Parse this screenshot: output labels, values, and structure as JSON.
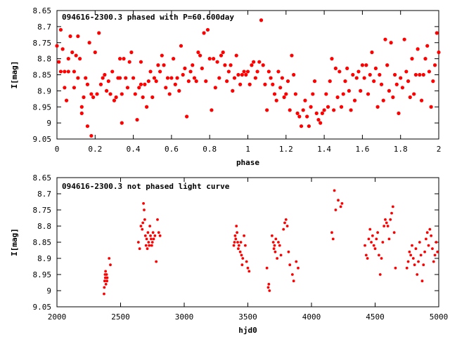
{
  "chart_data": [
    {
      "type": "scatter",
      "title": "094616-2300.3 phased with P=60.600day",
      "xlabel": "phase",
      "ylabel": "I[mag]",
      "xlim": [
        0,
        2
      ],
      "ylim": [
        8.65,
        9.05
      ],
      "y_inverted": true,
      "xticks": [
        "0",
        "0.2",
        "0.4",
        "0.6",
        "0.8",
        "1",
        "1.2",
        "1.4",
        "1.6",
        "1.8",
        "2"
      ],
      "yticks": [
        "8.65",
        "8.7",
        "8.75",
        "8.8",
        "8.85",
        "8.9",
        "8.95",
        "9",
        "9.05"
      ],
      "marker_color": "#ff0000",
      "points": [
        [
          0.0,
          8.76
        ],
        [
          0.01,
          8.81
        ],
        [
          0.02,
          8.84
        ],
        [
          0.02,
          8.71
        ],
        [
          0.03,
          8.77
        ],
        [
          0.04,
          8.84
        ],
        [
          0.04,
          8.89
        ],
        [
          0.05,
          8.93
        ],
        [
          0.06,
          8.84
        ],
        [
          0.06,
          8.8
        ],
        [
          0.07,
          8.73
        ],
        [
          0.08,
          8.78
        ],
        [
          0.09,
          8.89
        ],
        [
          0.09,
          8.84
        ],
        [
          0.1,
          8.79
        ],
        [
          0.11,
          8.86
        ],
        [
          0.11,
          8.73
        ],
        [
          0.12,
          8.8
        ],
        [
          0.13,
          8.95
        ],
        [
          0.13,
          8.97
        ],
        [
          0.14,
          8.92
        ],
        [
          0.15,
          8.86
        ],
        [
          0.16,
          8.88
        ],
        [
          0.16,
          9.01
        ],
        [
          0.17,
          8.75
        ],
        [
          0.18,
          9.04
        ],
        [
          0.18,
          8.91
        ],
        [
          0.19,
          8.92
        ],
        [
          0.2,
          8.78
        ],
        [
          0.21,
          8.91
        ],
        [
          0.22,
          8.72
        ],
        [
          0.23,
          8.88
        ],
        [
          0.24,
          8.86
        ],
        [
          0.25,
          8.85
        ],
        [
          0.26,
          8.9
        ],
        [
          0.27,
          8.87
        ],
        [
          0.28,
          8.91
        ],
        [
          0.29,
          8.84
        ],
        [
          0.3,
          8.93
        ],
        [
          0.31,
          8.92
        ],
        [
          0.32,
          8.86
        ],
        [
          0.33,
          8.8
        ],
        [
          0.33,
          8.86
        ],
        [
          0.34,
          8.91
        ],
        [
          0.34,
          9.0
        ],
        [
          0.35,
          8.8
        ],
        [
          0.36,
          8.86
        ],
        [
          0.37,
          8.89
        ],
        [
          0.38,
          8.81
        ],
        [
          0.39,
          8.78
        ],
        [
          0.4,
          8.86
        ],
        [
          0.41,
          8.91
        ],
        [
          0.42,
          8.99
        ],
        [
          0.43,
          8.89
        ],
        [
          0.44,
          8.88
        ],
        [
          0.44,
          8.81
        ],
        [
          0.45,
          8.92
        ],
        [
          0.46,
          8.88
        ],
        [
          0.47,
          8.95
        ],
        [
          0.48,
          8.87
        ],
        [
          0.49,
          8.84
        ],
        [
          0.5,
          8.92
        ],
        [
          0.51,
          8.86
        ],
        [
          0.52,
          8.87
        ],
        [
          0.53,
          8.82
        ],
        [
          0.54,
          8.84
        ],
        [
          0.55,
          8.79
        ],
        [
          0.56,
          8.82
        ],
        [
          0.57,
          8.89
        ],
        [
          0.58,
          8.86
        ],
        [
          0.59,
          8.91
        ],
        [
          0.6,
          8.86
        ],
        [
          0.61,
          8.8
        ],
        [
          0.62,
          8.88
        ],
        [
          0.63,
          8.86
        ],
        [
          0.64,
          8.9
        ],
        [
          0.65,
          8.76
        ],
        [
          0.66,
          8.85
        ],
        [
          0.67,
          8.83
        ],
        [
          0.68,
          8.98
        ],
        [
          0.69,
          8.87
        ],
        [
          0.7,
          8.84
        ],
        [
          0.71,
          8.82
        ],
        [
          0.72,
          8.86
        ],
        [
          0.73,
          8.87
        ],
        [
          0.74,
          8.78
        ],
        [
          0.75,
          8.79
        ],
        [
          0.76,
          8.83
        ],
        [
          0.77,
          8.72
        ],
        [
          0.78,
          8.87
        ],
        [
          0.79,
          8.71
        ],
        [
          0.8,
          8.8
        ],
        [
          0.81,
          8.96
        ],
        [
          0.82,
          8.8
        ],
        [
          0.83,
          8.89
        ],
        [
          0.84,
          8.81
        ],
        [
          0.85,
          8.86
        ],
        [
          0.86,
          8.79
        ],
        [
          0.87,
          8.78
        ],
        [
          0.88,
          8.82
        ],
        [
          0.89,
          8.87
        ],
        [
          0.9,
          8.84
        ],
        [
          0.91,
          8.82
        ],
        [
          0.92,
          8.9
        ],
        [
          0.93,
          8.86
        ],
        [
          0.94,
          8.79
        ],
        [
          0.95,
          8.85
        ],
        [
          0.96,
          8.88
        ],
        [
          0.97,
          8.85
        ],
        [
          0.98,
          8.84
        ],
        [
          0.99,
          8.85
        ],
        [
          1.0,
          8.84
        ],
        [
          1.01,
          8.88
        ],
        [
          1.02,
          8.82
        ],
        [
          1.03,
          8.81
        ],
        [
          1.04,
          8.86
        ],
        [
          1.05,
          8.84
        ],
        [
          1.06,
          8.81
        ],
        [
          1.07,
          8.68
        ],
        [
          1.08,
          8.82
        ],
        [
          1.09,
          8.88
        ],
        [
          1.1,
          8.96
        ],
        [
          1.11,
          8.84
        ],
        [
          1.12,
          8.86
        ],
        [
          1.13,
          8.88
        ],
        [
          1.14,
          8.91
        ],
        [
          1.15,
          8.93
        ],
        [
          1.16,
          8.84
        ],
        [
          1.17,
          8.89
        ],
        [
          1.18,
          8.86
        ],
        [
          1.19,
          8.92
        ],
        [
          1.2,
          8.91
        ],
        [
          1.21,
          8.87
        ],
        [
          1.22,
          8.96
        ],
        [
          1.23,
          8.79
        ],
        [
          1.24,
          8.85
        ],
        [
          1.25,
          8.91
        ],
        [
          1.26,
          8.97
        ],
        [
          1.27,
          8.98
        ],
        [
          1.28,
          9.01
        ],
        [
          1.29,
          8.96
        ],
        [
          1.3,
          8.93
        ],
        [
          1.31,
          8.98
        ],
        [
          1.32,
          9.01
        ],
        [
          1.33,
          8.95
        ],
        [
          1.34,
          8.91
        ],
        [
          1.35,
          8.87
        ],
        [
          1.36,
          8.97
        ],
        [
          1.37,
          8.99
        ],
        [
          1.38,
          9.0
        ],
        [
          1.39,
          8.97
        ],
        [
          1.4,
          8.96
        ],
        [
          1.41,
          8.91
        ],
        [
          1.42,
          8.95
        ],
        [
          1.43,
          8.87
        ],
        [
          1.44,
          8.8
        ],
        [
          1.45,
          8.96
        ],
        [
          1.46,
          8.83
        ],
        [
          1.47,
          8.92
        ],
        [
          1.48,
          8.84
        ],
        [
          1.49,
          8.95
        ],
        [
          1.5,
          8.91
        ],
        [
          1.51,
          8.87
        ],
        [
          1.52,
          8.83
        ],
        [
          1.53,
          8.9
        ],
        [
          1.54,
          8.96
        ],
        [
          1.55,
          8.85
        ],
        [
          1.56,
          8.93
        ],
        [
          1.57,
          8.86
        ],
        [
          1.58,
          8.84
        ],
        [
          1.59,
          8.9
        ],
        [
          1.6,
          8.82
        ],
        [
          1.61,
          8.86
        ],
        [
          1.62,
          8.82
        ],
        [
          1.63,
          8.91
        ],
        [
          1.64,
          8.85
        ],
        [
          1.65,
          8.78
        ],
        [
          1.66,
          8.87
        ],
        [
          1.67,
          8.83
        ],
        [
          1.68,
          8.95
        ],
        [
          1.69,
          8.85
        ],
        [
          1.7,
          8.88
        ],
        [
          1.71,
          8.93
        ],
        [
          1.72,
          8.74
        ],
        [
          1.73,
          8.82
        ],
        [
          1.74,
          8.9
        ],
        [
          1.75,
          8.75
        ],
        [
          1.76,
          8.92
        ],
        [
          1.77,
          8.85
        ],
        [
          1.78,
          8.88
        ],
        [
          1.79,
          8.97
        ],
        [
          1.8,
          8.86
        ],
        [
          1.81,
          8.89
        ],
        [
          1.82,
          8.74
        ],
        [
          1.83,
          8.84
        ],
        [
          1.84,
          8.87
        ],
        [
          1.85,
          8.92
        ],
        [
          1.86,
          8.8
        ],
        [
          1.87,
          8.91
        ],
        [
          1.88,
          8.85
        ],
        [
          1.89,
          8.77
        ],
        [
          1.9,
          8.85
        ],
        [
          1.91,
          8.93
        ],
        [
          1.92,
          8.85
        ],
        [
          1.93,
          8.8
        ],
        [
          1.94,
          8.76
        ],
        [
          1.95,
          8.84
        ],
        [
          1.96,
          8.95
        ],
        [
          1.97,
          8.87
        ],
        [
          1.98,
          8.82
        ],
        [
          1.99,
          8.72
        ],
        [
          2.0,
          8.78
        ]
      ]
    },
    {
      "type": "scatter",
      "title": "094616-2300.3 not phased light curve",
      "xlabel": "hjd0",
      "ylabel": "I[mag]",
      "xlim": [
        2000,
        5000
      ],
      "ylim": [
        8.65,
        9.05
      ],
      "y_inverted": true,
      "xticks": [
        "2000",
        "2500",
        "3000",
        "3500",
        "4000",
        "4500",
        "5000"
      ],
      "yticks": [
        "8.65",
        "8.7",
        "8.75",
        "8.8",
        "8.85",
        "8.9",
        "8.95",
        "9",
        "9.05"
      ],
      "marker_color": "#ff0000",
      "points": [
        [
          2370,
          9.01
        ],
        [
          2372,
          8.99
        ],
        [
          2375,
          8.97
        ],
        [
          2378,
          8.95
        ],
        [
          2380,
          8.96
        ],
        [
          2382,
          8.94
        ],
        [
          2385,
          8.98
        ],
        [
          2388,
          8.96
        ],
        [
          2390,
          8.95
        ],
        [
          2393,
          8.97
        ],
        [
          2395,
          8.96
        ],
        [
          2410,
          8.9
        ],
        [
          2420,
          8.92
        ],
        [
          2640,
          8.85
        ],
        [
          2650,
          8.87
        ],
        [
          2660,
          8.8
        ],
        [
          2670,
          8.81
        ],
        [
          2675,
          8.79
        ],
        [
          2680,
          8.73
        ],
        [
          2685,
          8.75
        ],
        [
          2690,
          8.78
        ],
        [
          2695,
          8.83
        ],
        [
          2700,
          8.86
        ],
        [
          2705,
          8.84
        ],
        [
          2710,
          8.87
        ],
        [
          2715,
          8.82
        ],
        [
          2720,
          8.85
        ],
        [
          2725,
          8.86
        ],
        [
          2730,
          8.8
        ],
        [
          2735,
          8.83
        ],
        [
          2740,
          8.84
        ],
        [
          2745,
          8.86
        ],
        [
          2750,
          8.85
        ],
        [
          2755,
          8.82
        ],
        [
          2760,
          8.84
        ],
        [
          2770,
          8.83
        ],
        [
          2780,
          8.91
        ],
        [
          2790,
          8.78
        ],
        [
          2800,
          8.82
        ],
        [
          2810,
          8.83
        ],
        [
          3390,
          8.86
        ],
        [
          3395,
          8.85
        ],
        [
          3400,
          8.83
        ],
        [
          3405,
          8.84
        ],
        [
          3410,
          8.8
        ],
        [
          3415,
          8.82
        ],
        [
          3420,
          8.85
        ],
        [
          3425,
          8.87
        ],
        [
          3430,
          8.86
        ],
        [
          3440,
          8.88
        ],
        [
          3445,
          8.85
        ],
        [
          3450,
          8.89
        ],
        [
          3455,
          8.92
        ],
        [
          3460,
          8.9
        ],
        [
          3470,
          8.83
        ],
        [
          3480,
          8.86
        ],
        [
          3490,
          8.91
        ],
        [
          3500,
          8.93
        ],
        [
          3510,
          8.94
        ],
        [
          3650,
          8.93
        ],
        [
          3660,
          8.99
        ],
        [
          3665,
          8.98
        ],
        [
          3670,
          9.0
        ],
        [
          3690,
          8.83
        ],
        [
          3700,
          8.85
        ],
        [
          3705,
          8.87
        ],
        [
          3710,
          8.86
        ],
        [
          3715,
          8.88
        ],
        [
          3720,
          8.84
        ],
        [
          3730,
          8.9
        ],
        [
          3740,
          8.85
        ],
        [
          3750,
          8.86
        ],
        [
          3760,
          8.89
        ],
        [
          3780,
          8.81
        ],
        [
          3790,
          8.79
        ],
        [
          3800,
          8.78
        ],
        [
          3810,
          8.8
        ],
        [
          3820,
          8.88
        ],
        [
          3830,
          8.92
        ],
        [
          3850,
          8.95
        ],
        [
          3860,
          8.97
        ],
        [
          3880,
          8.91
        ],
        [
          3895,
          8.93
        ],
        [
          4160,
          8.82
        ],
        [
          4170,
          8.84
        ],
        [
          4180,
          8.69
        ],
        [
          4190,
          8.75
        ],
        [
          4210,
          8.72
        ],
        [
          4230,
          8.74
        ],
        [
          4240,
          8.73
        ],
        [
          4420,
          8.86
        ],
        [
          4430,
          8.89
        ],
        [
          4440,
          8.9
        ],
        [
          4450,
          8.84
        ],
        [
          4460,
          8.81
        ],
        [
          4470,
          8.85
        ],
        [
          4480,
          8.83
        ],
        [
          4490,
          8.86
        ],
        [
          4500,
          8.87
        ],
        [
          4510,
          8.84
        ],
        [
          4520,
          8.82
        ],
        [
          4530,
          8.89
        ],
        [
          4540,
          8.95
        ],
        [
          4550,
          8.9
        ],
        [
          4560,
          8.85
        ],
        [
          4570,
          8.8
        ],
        [
          4580,
          8.78
        ],
        [
          4590,
          8.79
        ],
        [
          4600,
          8.8
        ],
        [
          4610,
          8.84
        ],
        [
          4620,
          8.78
        ],
        [
          4630,
          8.76
        ],
        [
          4640,
          8.74
        ],
        [
          4650,
          8.82
        ],
        [
          4660,
          8.93
        ],
        [
          4750,
          8.93
        ],
        [
          4760,
          8.91
        ],
        [
          4770,
          8.88
        ],
        [
          4780,
          8.89
        ],
        [
          4790,
          8.86
        ],
        [
          4800,
          8.9
        ],
        [
          4810,
          8.92
        ],
        [
          4820,
          8.87
        ],
        [
          4830,
          8.95
        ],
        [
          4840,
          8.91
        ],
        [
          4850,
          8.85
        ],
        [
          4860,
          8.89
        ],
        [
          4870,
          8.97
        ],
        [
          4880,
          8.92
        ],
        [
          4890,
          8.88
        ],
        [
          4900,
          8.84
        ],
        [
          4910,
          8.82
        ],
        [
          4920,
          8.86
        ],
        [
          4930,
          8.81
        ],
        [
          4940,
          8.83
        ],
        [
          4950,
          8.87
        ],
        [
          4960,
          8.91
        ],
        [
          4970,
          8.89
        ],
        [
          4980,
          8.85
        ],
        [
          4990,
          8.88
        ]
      ]
    }
  ]
}
